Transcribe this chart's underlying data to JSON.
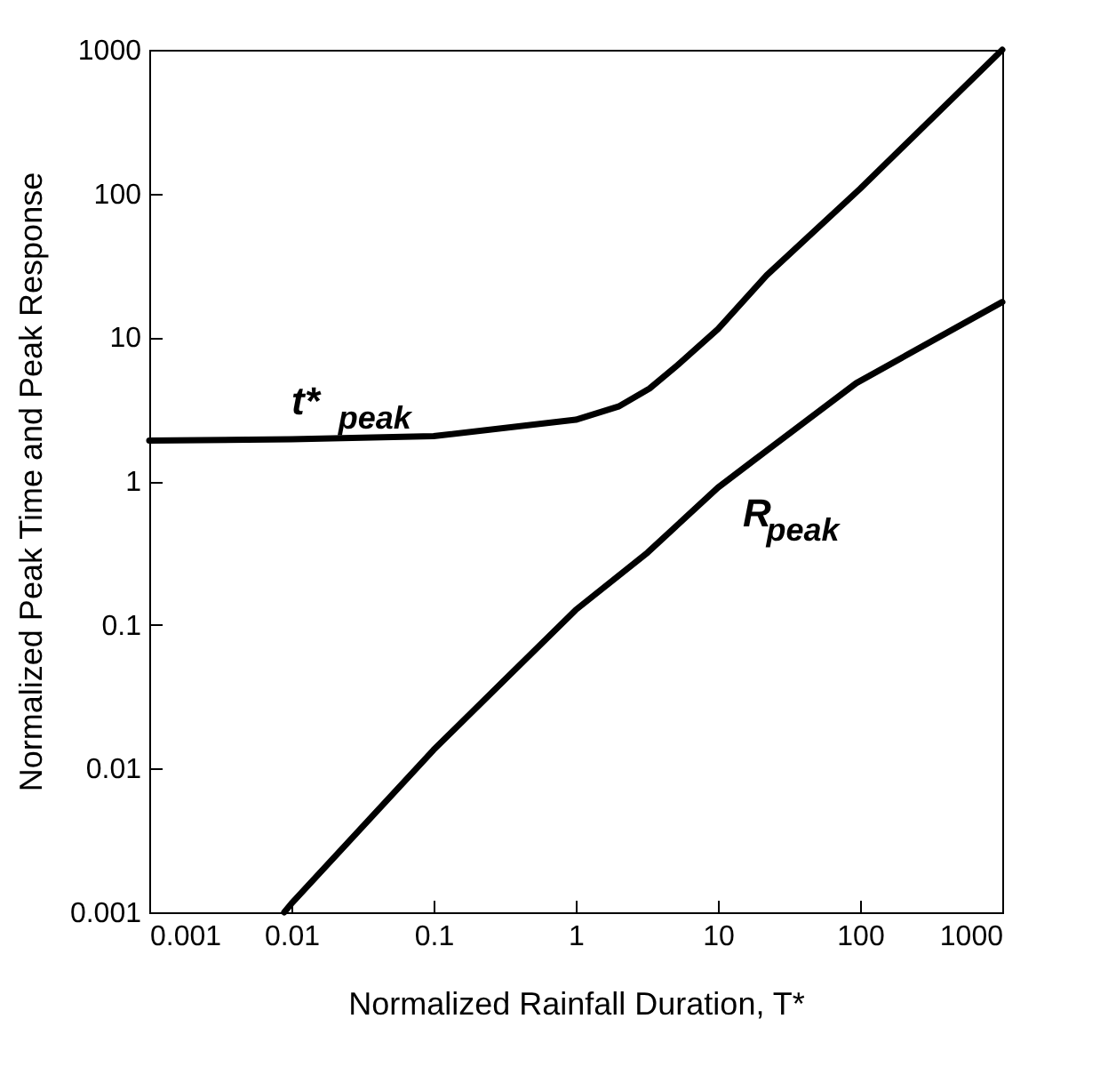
{
  "chart_data": {
    "type": "line",
    "xlabel": "Normalized Rainfall Duration, T*",
    "ylabel": "Normalized Peak Time and Peak Response",
    "log": "xy",
    "xlim": [
      0.001,
      1000
    ],
    "xticks": [
      0.001,
      0.01,
      0.1,
      1,
      10,
      100,
      1000
    ],
    "ylim": [
      0.001,
      1000
    ],
    "yticks": [
      0.001,
      0.01,
      0.1,
      1,
      10,
      100,
      1000
    ],
    "grid": false,
    "legend": false,
    "marker": "none",
    "line_style": "solid",
    "series": [
      {
        "name": "t*$_{peak}$",
        "color": "#000000",
        "x": [
          0.001,
          0.01,
          0.1,
          1,
          2,
          3.3,
          5.2,
          10,
          22,
          100,
          1000
        ],
        "values": [
          1.91,
          1.95,
          2.05,
          2.67,
          3.3,
          4.4,
          6.4,
          11.4,
          27,
          108,
          1000
        ]
      },
      {
        "name": "R$_{peak}$",
        "color": "#000000",
        "x": [
          0.0089,
          0.01,
          0.1,
          1,
          3.2,
          10,
          18,
          94,
          1000
        ],
        "values": [
          0.001,
          0.00115,
          0.0135,
          0.127,
          0.318,
          0.9,
          1.4,
          4.8,
          17.6
        ]
      }
    ]
  }
}
